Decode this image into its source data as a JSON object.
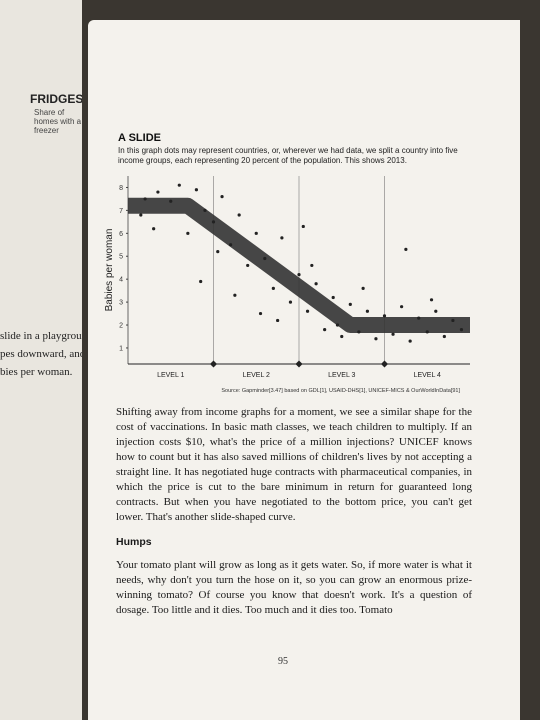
{
  "left_page": {
    "heading": "FRIDGES",
    "subheading": "Share of homes with a freezer",
    "lines": [
      "slide in a playground. It s",
      "pes downward, and then it",
      "bies per woman."
    ]
  },
  "chart_data": {
    "type": "scatter",
    "title": "A SLIDE",
    "subtitle": "In this graph dots may represent countries, or, wherever we had data, we split a country into five income groups, each representing 20 percent of the population. This shows 2013.",
    "ylabel": "Babies per woman",
    "categories": [
      "LEVEL 1",
      "LEVEL 2",
      "LEVEL 3",
      "LEVEL 4"
    ],
    "xlim": [
      0,
      4
    ],
    "ylim": [
      0.3,
      8.5
    ],
    "yticks": [
      1,
      2,
      3,
      4,
      5,
      6,
      7,
      8
    ],
    "color": "#222222",
    "x": [
      0.2,
      0.35,
      0.5,
      0.6,
      0.8,
      0.9,
      1.0,
      0.15,
      0.3,
      0.7,
      1.1,
      1.2,
      1.3,
      1.4,
      1.5,
      1.6,
      1.7,
      1.8,
      1.9,
      2.0,
      2.1,
      2.2,
      2.3,
      2.4,
      2.5,
      2.6,
      2.7,
      2.8,
      2.9,
      3.0,
      3.1,
      3.2,
      3.3,
      3.4,
      3.5,
      3.6,
      3.7,
      3.8,
      3.9,
      1.05,
      0.85,
      1.25,
      1.55,
      2.15,
      2.45,
      2.75,
      3.25,
      2.05,
      1.75,
      3.55
    ],
    "values": [
      7.5,
      7.8,
      7.4,
      8.1,
      7.9,
      7.0,
      6.5,
      6.8,
      6.2,
      6.0,
      7.6,
      5.5,
      6.8,
      4.6,
      6.0,
      4.9,
      3.6,
      5.8,
      3.0,
      4.2,
      2.6,
      3.8,
      1.8,
      3.2,
      1.5,
      2.9,
      1.7,
      2.6,
      1.4,
      2.4,
      1.6,
      2.8,
      1.3,
      2.3,
      1.7,
      2.6,
      1.5,
      2.2,
      1.8,
      5.2,
      3.9,
      3.3,
      2.5,
      4.6,
      2.0,
      3.6,
      5.3,
      6.3,
      2.2,
      3.1
    ],
    "trend": {
      "x": [
        0,
        0.7,
        2.6,
        4
      ],
      "values": [
        7.2,
        7.2,
        2,
        2
      ],
      "color": "#333333"
    },
    "source": "Source: Gapminder[3.47] based on GDL[1], USAID-DHS[1], UNICEF-MICS & OurWorldInData[91]"
  },
  "body": {
    "p1": "Shifting away from income graphs for a moment, we see a similar shape for the cost of vaccinations. In basic math classes, we teach children to multiply. If an injection costs $10, what's the price of a million injections? UNICEF knows how to count but it has also saved millions of children's lives by not accepting a straight line. It has negotiated huge contracts with pharmaceutical companies, in which the price is cut to the bare minimum in return for guaranteed long contracts. But when you have negotiated to the bottom price, you can't get lower. That's another slide-shaped curve.",
    "heading": "Humps",
    "p2": "Your tomato plant will grow as long as it gets water. So, if more water is what it needs, why don't you turn the hose on it, so you can grow an enormous prize-winning tomato? Of course you know that doesn't work. It's a question of dosage. Too little and it dies. Too much and it dies too. Tomato",
    "page_number": "95"
  }
}
